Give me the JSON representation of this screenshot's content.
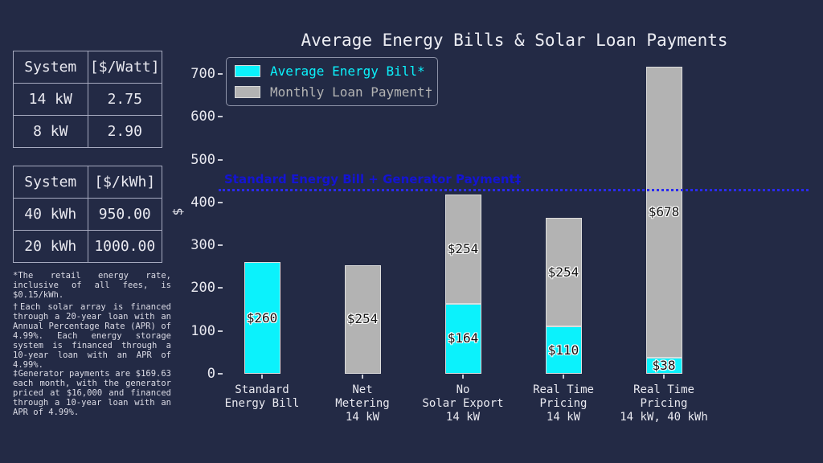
{
  "title": "Average Energy Bills & Solar Loan Payments",
  "colors": {
    "background": "#232A45",
    "text": "#E9E9F0",
    "energy_bill_cyan": "#0BF2FC",
    "loan_payment_gray": "#B3B3B3",
    "reference_line_blue": "#2A2AF0",
    "reference_text_blue": "#1414D2",
    "bar_edge": "#DCDCDC"
  },
  "legend": {
    "items": [
      {
        "label": "Average Energy Bill*",
        "color": "#0BF2FC"
      },
      {
        "label": "Monthly Loan Payment†",
        "color": "#B3B3B3"
      }
    ]
  },
  "tables": [
    {
      "headers": [
        "System",
        "[$/Watt]"
      ],
      "rows": [
        [
          "14 kW",
          "2.75"
        ],
        [
          "8 kW",
          "2.90"
        ]
      ]
    },
    {
      "headers": [
        "System",
        "[$/kWh]"
      ],
      "rows": [
        [
          "40 kWh",
          "950.00"
        ],
        [
          "20 kWh",
          "1000.00"
        ]
      ]
    }
  ],
  "footnotes": [
    "*The retail energy rate, inclusive of all fees, is $0.15/kWh.",
    "†Each solar array is financed through a 20-year loan with an Annual Percentage Rate (APR) of 4.99%. Each energy storage system is financed through a 10-year loan with an APR of 4.99%.",
    "‡Generator payments are $169.63 each month, with the generator priced at $16,000 and financed through a 10-year loan with an APR of 4.99%."
  ],
  "chart_data": {
    "type": "bar",
    "stacked": true,
    "title": "Average Energy Bills & Solar Loan Payments",
    "ylabel": "$",
    "yticks": [
      0,
      100,
      200,
      300,
      400,
      500,
      600,
      700
    ],
    "ylim": [
      0,
      735
    ],
    "grid": false,
    "legend_position": "upper left",
    "categories": [
      "Standard\nEnergy Bill",
      "Net\nMetering\n14 kW",
      "No\nSolar Export\n14 kW",
      "Real Time\nPricing\n14 kW",
      "Real Time\nPricing\n14 kW, 40 kWh"
    ],
    "series": [
      {
        "name": "Average Energy Bill*",
        "color": "#0BF2FC",
        "values": [
          260,
          0,
          164,
          110,
          38
        ],
        "bar_labels": [
          "$260",
          "",
          "$164",
          "$110",
          "$38"
        ]
      },
      {
        "name": "Monthly Loan Payment†",
        "color": "#B3B3B3",
        "values": [
          0,
          254,
          254,
          254,
          678
        ],
        "bar_labels": [
          "",
          "$254",
          "$254",
          "$254",
          "$678"
        ]
      }
    ],
    "reference_line": {
      "label": "Standard Energy Bill + Generator Payment‡",
      "value": 429.63,
      "style": "dotted",
      "color": "#2A2AF0"
    }
  }
}
